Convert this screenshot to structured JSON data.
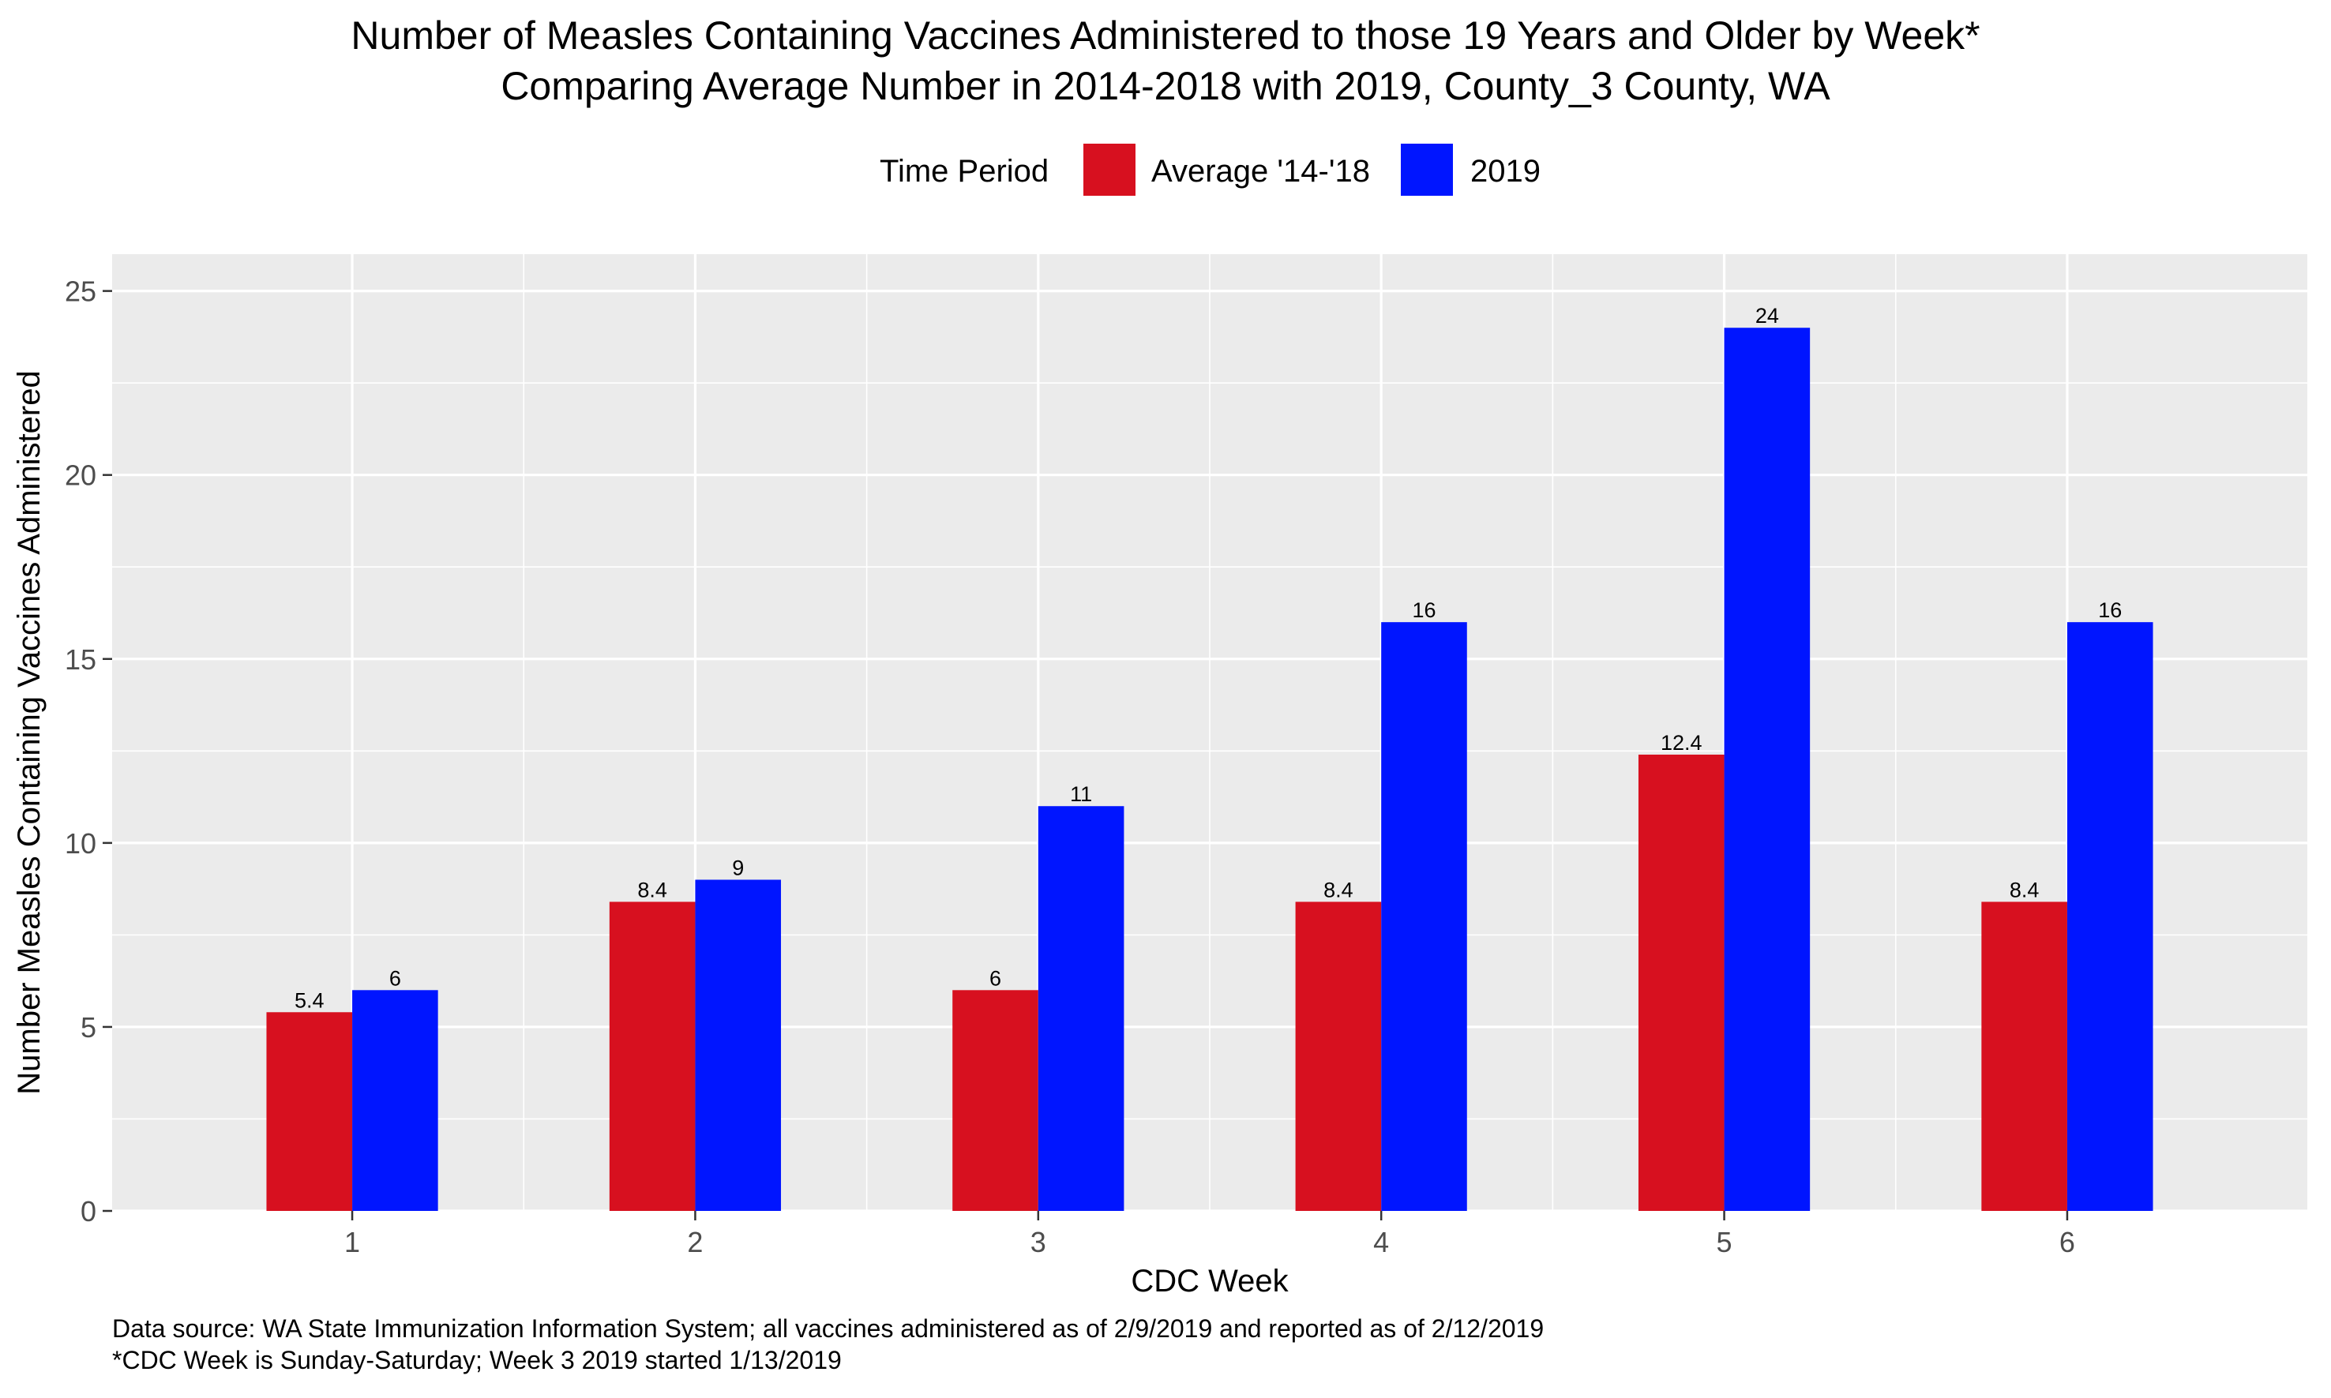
{
  "chart_data": {
    "type": "bar",
    "title": "Number of Measles Containing Vaccines Administered to those 19 Years and Older by Week*",
    "subtitle": "Comparing Average Number in 2014-2018 with 2019, County_3 County, WA",
    "xlabel": "CDC Week",
    "ylabel": "Number Measles Containing Vaccines Administered",
    "categories": [
      "1",
      "2",
      "3",
      "4",
      "5",
      "6"
    ],
    "series": [
      {
        "name": "Average '14-'18",
        "color": "#D7101F",
        "values": [
          5.4,
          8.4,
          6,
          8.4,
          12.4,
          8.4
        ]
      },
      {
        "name": "2019",
        "color": "#0015FF",
        "values": [
          6,
          9,
          11,
          16,
          24,
          16
        ]
      }
    ],
    "ylim": [
      0,
      26
    ],
    "yticks": [
      0,
      5,
      10,
      15,
      20,
      25
    ],
    "grid": true,
    "legend": {
      "title": "Time Period",
      "position": "top"
    },
    "data_labels": true,
    "panel_background": "#EBEBEB",
    "gridline_color": "#FFFFFF"
  },
  "captions": {
    "line1": "Data source: WA State Immunization Information System; all vaccines administered as of 2/9/2019 and reported as of 2/12/2019",
    "line2": "*CDC Week is Sunday-Saturday; Week 3 2019 started 1/13/2019"
  }
}
